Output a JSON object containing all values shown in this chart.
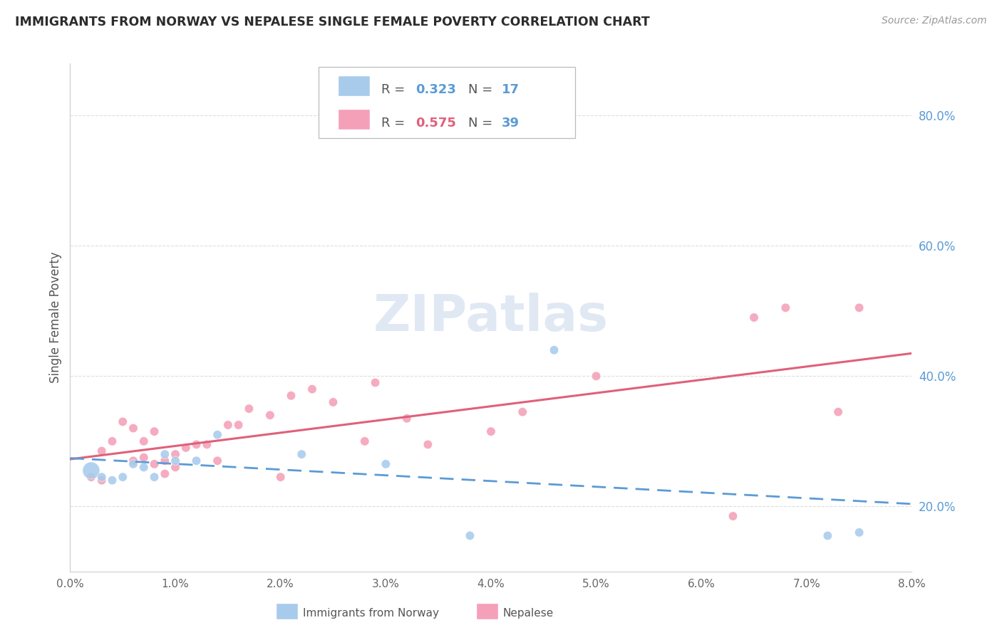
{
  "title": "IMMIGRANTS FROM NORWAY VS NEPALESE SINGLE FEMALE POVERTY CORRELATION CHART",
  "source": "Source: ZipAtlas.com",
  "ylabel": "Single Female Poverty",
  "legend_label1": "Immigrants from Norway",
  "legend_label2": "Nepalese",
  "r1": "0.323",
  "n1": "17",
  "r2": "0.575",
  "n2": "39",
  "xlim": [
    0.0,
    0.08
  ],
  "ylim": [
    0.1,
    0.88
  ],
  "xticks": [
    0.0,
    0.01,
    0.02,
    0.03,
    0.04,
    0.05,
    0.06,
    0.07,
    0.08
  ],
  "xtick_labels": [
    "0.0%",
    "1.0%",
    "2.0%",
    "3.0%",
    "4.0%",
    "5.0%",
    "6.0%",
    "7.0%",
    "8.0%"
  ],
  "yticks_right": [
    0.2,
    0.4,
    0.6,
    0.8
  ],
  "ytick_labels_right": [
    "20.0%",
    "40.0%",
    "60.0%",
    "80.0%"
  ],
  "color_blue": "#A8CBEC",
  "color_pink": "#F4A0B8",
  "color_blue_line": "#5B9BD5",
  "color_pink_line": "#E0607A",
  "n_color": "#5B9BD5",
  "watermark_color": "#C8D8EA",
  "norway_x": [
    0.002,
    0.003,
    0.004,
    0.005,
    0.006,
    0.007,
    0.008,
    0.009,
    0.01,
    0.012,
    0.014,
    0.022,
    0.03,
    0.038,
    0.046,
    0.072,
    0.075
  ],
  "norway_y": [
    0.255,
    0.245,
    0.24,
    0.245,
    0.265,
    0.26,
    0.245,
    0.28,
    0.27,
    0.27,
    0.31,
    0.28,
    0.265,
    0.155,
    0.44,
    0.155,
    0.16
  ],
  "norway_sizes": [
    300,
    80,
    80,
    80,
    80,
    80,
    80,
    80,
    80,
    80,
    80,
    80,
    80,
    80,
    80,
    80,
    80
  ],
  "nepal_x": [
    0.002,
    0.003,
    0.003,
    0.004,
    0.005,
    0.006,
    0.006,
    0.007,
    0.007,
    0.008,
    0.008,
    0.009,
    0.009,
    0.01,
    0.01,
    0.011,
    0.012,
    0.013,
    0.014,
    0.015,
    0.016,
    0.017,
    0.019,
    0.02,
    0.021,
    0.023,
    0.025,
    0.028,
    0.029,
    0.032,
    0.034,
    0.04,
    0.043,
    0.05,
    0.063,
    0.065,
    0.068,
    0.073,
    0.075
  ],
  "nepal_y": [
    0.245,
    0.24,
    0.285,
    0.3,
    0.33,
    0.27,
    0.32,
    0.275,
    0.3,
    0.265,
    0.315,
    0.25,
    0.27,
    0.26,
    0.28,
    0.29,
    0.295,
    0.295,
    0.27,
    0.325,
    0.325,
    0.35,
    0.34,
    0.245,
    0.37,
    0.38,
    0.36,
    0.3,
    0.39,
    0.335,
    0.295,
    0.315,
    0.345,
    0.4,
    0.185,
    0.49,
    0.505,
    0.345,
    0.505
  ],
  "nepal_sizes": [
    80,
    80,
    80,
    80,
    80,
    80,
    80,
    80,
    80,
    80,
    80,
    80,
    80,
    80,
    80,
    80,
    80,
    80,
    80,
    80,
    80,
    80,
    80,
    80,
    80,
    80,
    80,
    80,
    80,
    80,
    80,
    80,
    80,
    80,
    80,
    80,
    80,
    80,
    80
  ]
}
